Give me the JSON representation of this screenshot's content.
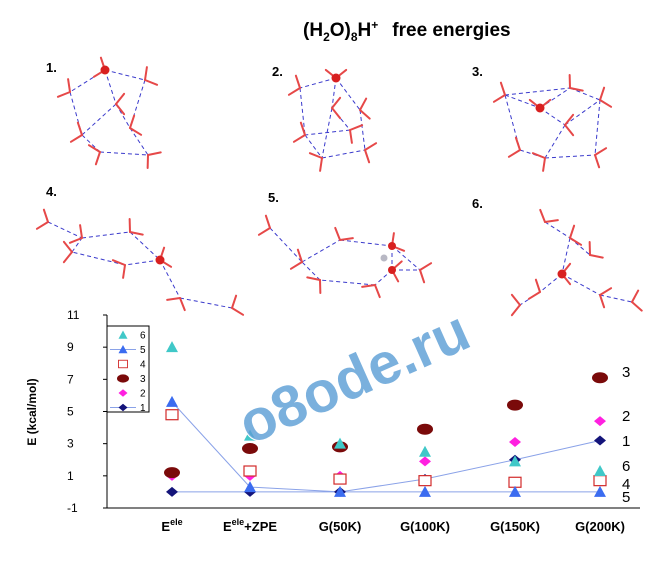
{
  "title": {
    "formula_main": "(H",
    "formula_sub1": "2",
    "formula_mid": "O)",
    "formula_sub2": "8",
    "formula_h": "H",
    "formula_sup": "+",
    "rest": "free energies"
  },
  "structures": [
    {
      "label": "1."
    },
    {
      "label": "2."
    },
    {
      "label": "3."
    },
    {
      "label": "4."
    },
    {
      "label": "5."
    },
    {
      "label": "6."
    }
  ],
  "watermark": "o8ode.ru",
  "colors": {
    "s6": "#40c8c8",
    "s5": "#3b6cf0",
    "s4": "#d22a2a",
    "s3": "#7a0a0a",
    "s2": "#ff20e0",
    "s1": "#14147a",
    "line": "#8aa2e8",
    "bond": "#3a3acc",
    "oxygen": "#d82020",
    "hydrogen": "#e64848"
  },
  "chart_data": {
    "type": "scatter",
    "categories": [
      "E",
      "E",
      "G(50K)",
      "G(100K)",
      "G(150K)",
      "G(200K)"
    ],
    "category_sup": [
      "ele",
      "ele",
      "",
      "",
      "",
      ""
    ],
    "category_suffix": [
      "",
      "+ZPE",
      "",
      "",
      "",
      ""
    ],
    "ylabel": "E (kcal/mol)",
    "ylim": [
      -1,
      11
    ],
    "yticks": [
      -1,
      1,
      3,
      5,
      7,
      9,
      11
    ],
    "series": [
      {
        "name": "6",
        "marker": "triangle-up",
        "color": "#40c8c8",
        "line": false,
        "values": [
          9.0,
          3.5,
          3.0,
          2.5,
          1.9,
          1.3
        ]
      },
      {
        "name": "5",
        "marker": "triangle-up",
        "color": "#3b6cf0",
        "line": true,
        "values": [
          5.6,
          0.3,
          0.0,
          0.0,
          0.0,
          0.0
        ]
      },
      {
        "name": "4",
        "marker": "square-open",
        "color": "#d22a2a",
        "line": false,
        "values": [
          4.8,
          1.3,
          0.8,
          0.7,
          0.6,
          0.7
        ]
      },
      {
        "name": "3",
        "marker": "ellipse",
        "color": "#7a0a0a",
        "line": false,
        "values": [
          1.2,
          2.7,
          2.8,
          3.9,
          5.4,
          7.1
        ]
      },
      {
        "name": "2",
        "marker": "diamond",
        "color": "#ff20e0",
        "line": false,
        "values": [
          1.0,
          1.0,
          1.0,
          1.9,
          3.1,
          4.4
        ]
      },
      {
        "name": "1",
        "marker": "diamond",
        "color": "#14147a",
        "line": true,
        "values": [
          0.0,
          0.0,
          0.0,
          0.8,
          2.0,
          3.2
        ]
      }
    ],
    "series_end_labels": [
      "3",
      "2",
      "1",
      "6",
      "4",
      "5"
    ],
    "legend": {
      "position": "top-left",
      "entries": [
        "6",
        "5",
        "4",
        "3",
        "2",
        "1"
      ]
    }
  }
}
